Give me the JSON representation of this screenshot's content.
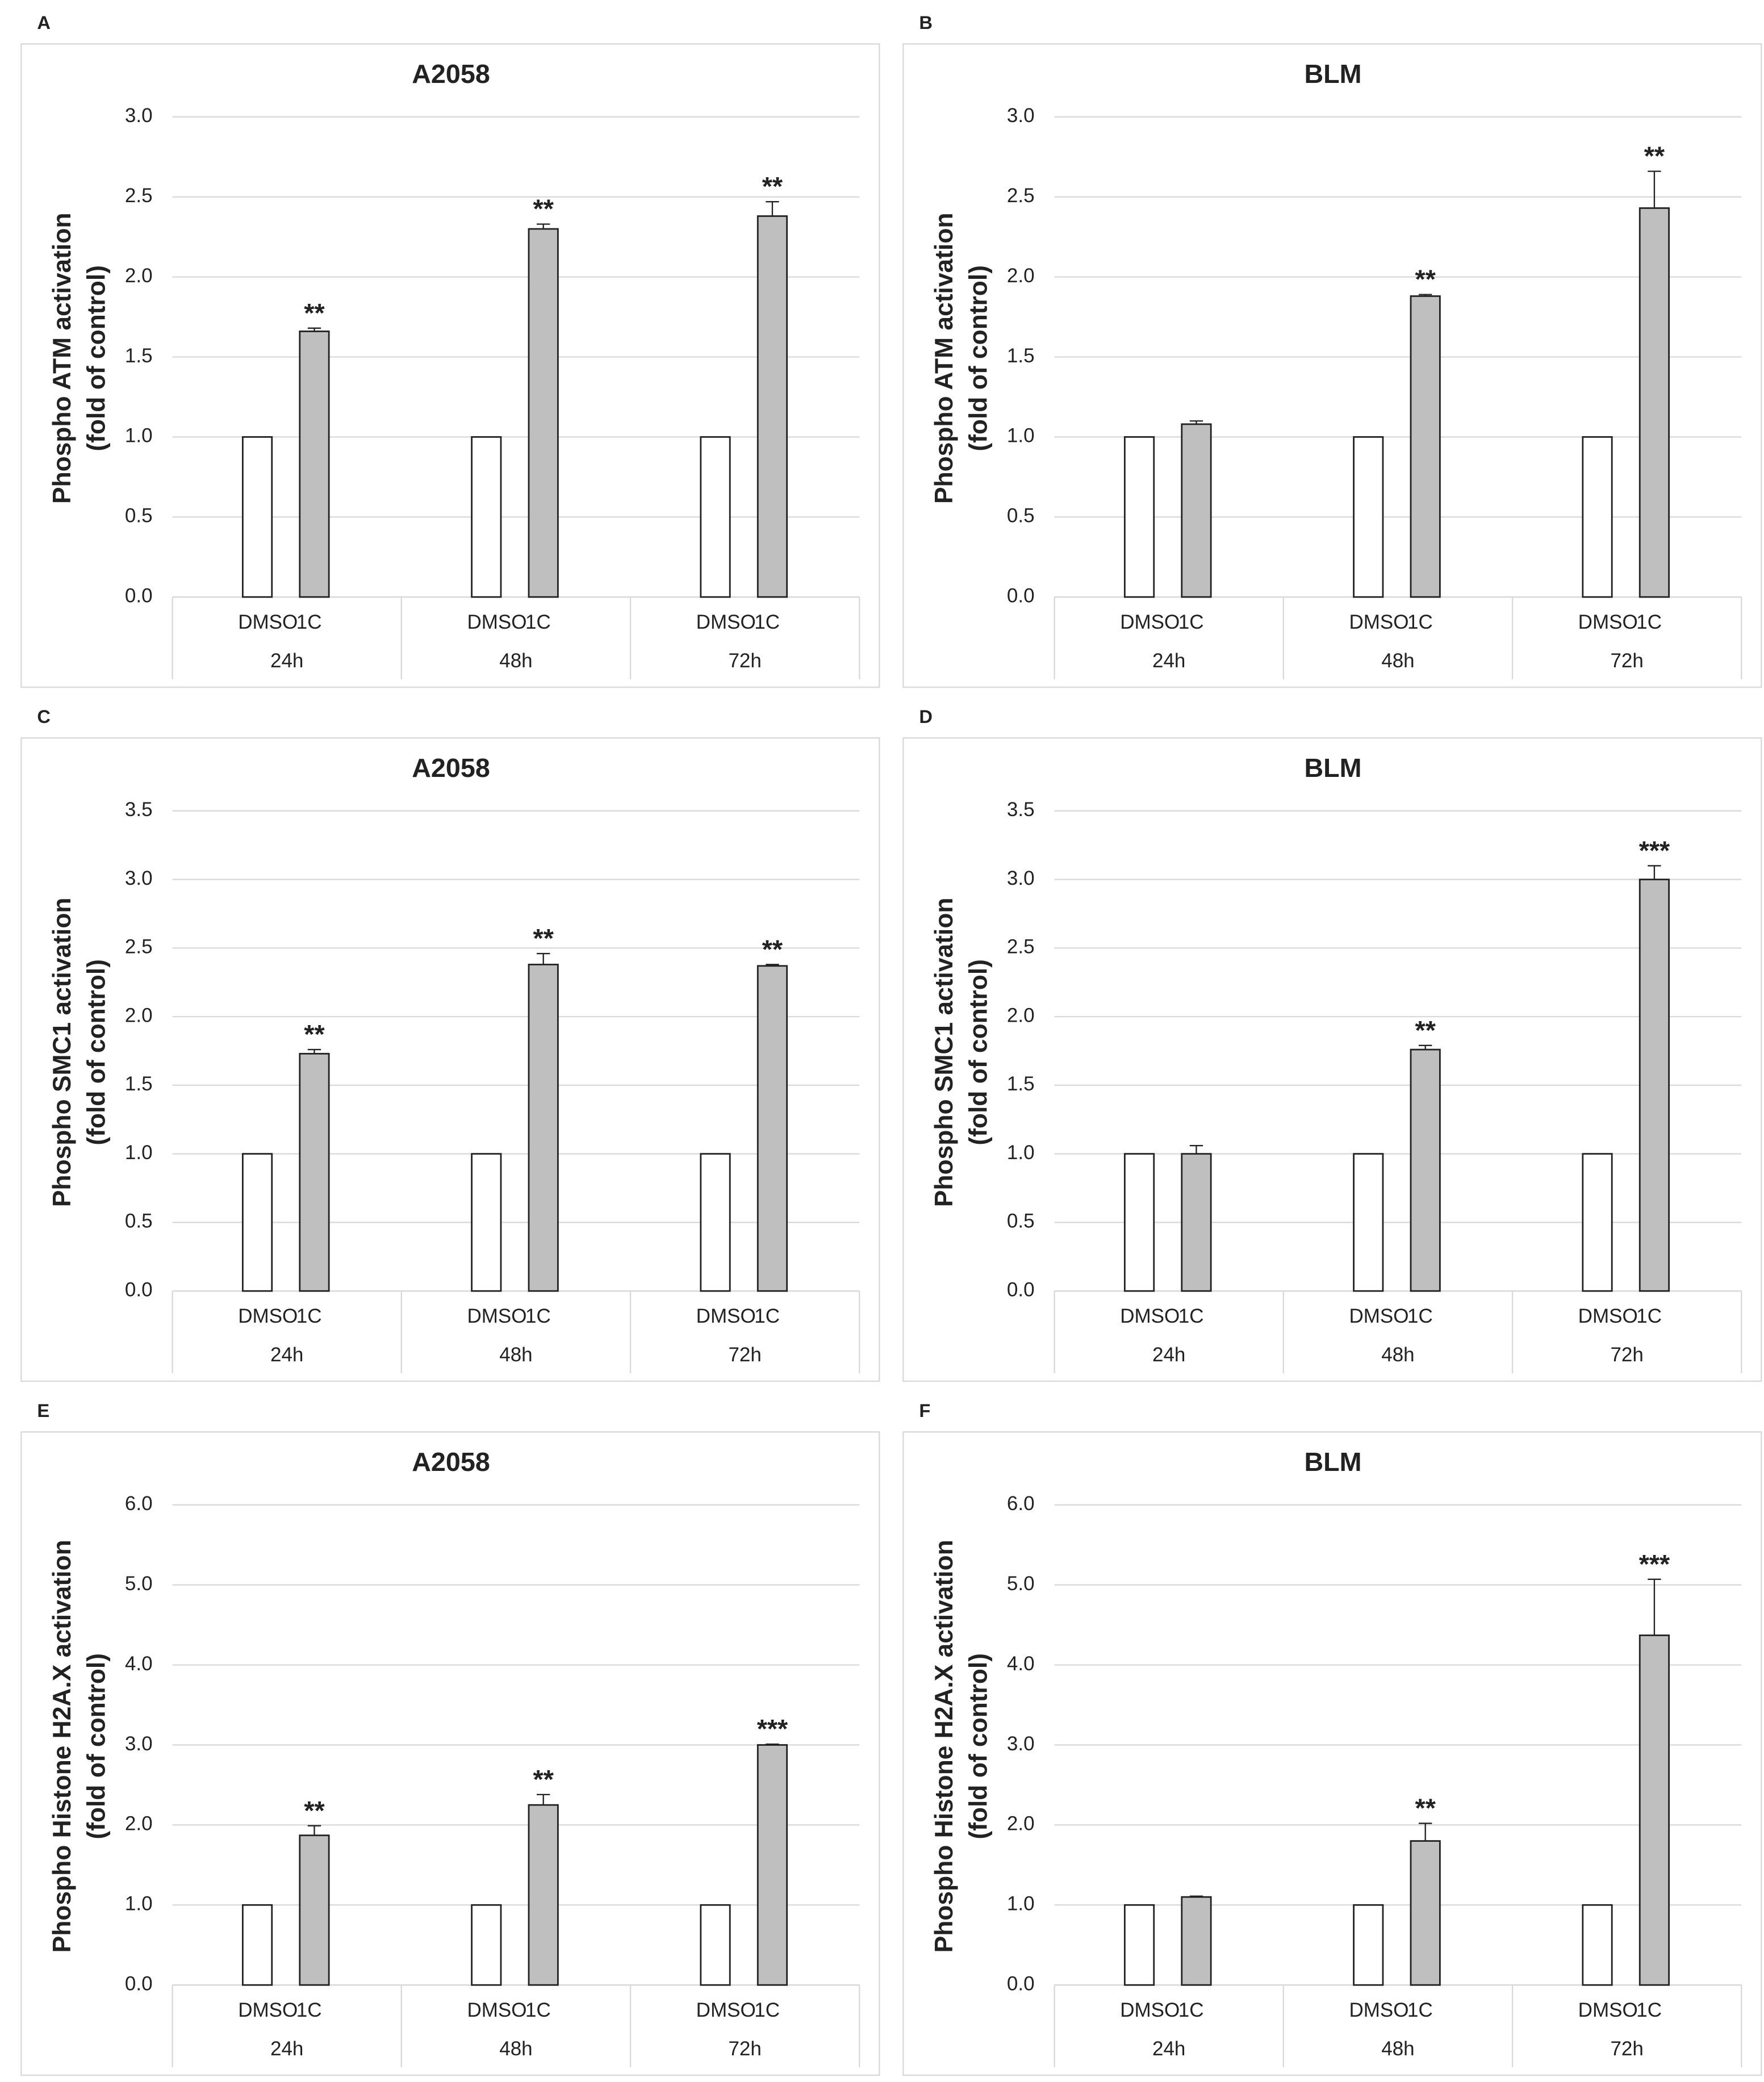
{
  "chart_data": [
    {
      "type": "bar",
      "panel_label": "A",
      "title": "A2058",
      "ylabel": [
        "Phospho ATM activation",
        "(fold of control)"
      ],
      "categories": [
        "24h",
        "48h",
        "72h"
      ],
      "series": [
        {
          "name": "DMSO",
          "color": "#ffffff",
          "values": [
            1.0,
            1.0,
            1.0
          ]
        },
        {
          "name": "1C",
          "color": "#bfbfbf",
          "values": [
            1.66,
            2.3,
            2.38
          ],
          "errors": [
            0.02,
            0.03,
            0.09
          ],
          "annotations": [
            "**",
            "**",
            "**"
          ]
        }
      ],
      "ylim": [
        0,
        3
      ],
      "yticks": [
        {
          "value": 0,
          "label": "0.0"
        },
        0.5,
        {
          "value": 1,
          "label": "1.0"
        },
        1.5,
        {
          "value": 2,
          "label": "2.0"
        },
        2.5,
        {
          "value": 3,
          "label": "3.0"
        }
      ],
      "grid": true
    },
    {
      "type": "bar",
      "panel_label": "B",
      "title": "BLM",
      "ylabel": [
        "Phospho ATM activation",
        "(fold of control)"
      ],
      "categories": [
        "24h",
        "48h",
        "72h"
      ],
      "series": [
        {
          "name": "DMSO",
          "color": "#ffffff",
          "values": [
            1.0,
            1.0,
            1.0
          ]
        },
        {
          "name": "1C",
          "color": "#bfbfbf",
          "values": [
            1.08,
            1.88,
            2.43
          ],
          "errors": [
            0.02,
            0.01,
            0.23
          ],
          "annotations": [
            null,
            "**",
            "**"
          ]
        }
      ],
      "ylim": [
        0,
        3
      ],
      "yticks": [
        {
          "value": 0,
          "label": "0.0"
        },
        0.5,
        {
          "value": 1,
          "label": "1.0"
        },
        1.5,
        {
          "value": 2,
          "label": "2.0"
        },
        2.5,
        {
          "value": 3,
          "label": "3.0"
        }
      ],
      "grid": true
    },
    {
      "type": "bar",
      "panel_label": "C",
      "title": "A2058",
      "ylabel": [
        "Phospho SMC1 activation",
        "(fold of control)"
      ],
      "categories": [
        "24h",
        "48h",
        "72h"
      ],
      "series": [
        {
          "name": "DMSO",
          "color": "#ffffff",
          "values": [
            1.0,
            1.0,
            1.0
          ]
        },
        {
          "name": "1C",
          "color": "#bfbfbf",
          "values": [
            1.73,
            2.38,
            2.37
          ],
          "errors": [
            0.03,
            0.08,
            0.01
          ],
          "annotations": [
            "**",
            "**",
            "**"
          ]
        }
      ],
      "ylim": [
        0,
        3.5
      ],
      "yticks": [
        {
          "value": 0,
          "label": "0.0"
        },
        0.5,
        {
          "value": 1,
          "label": "1.0"
        },
        1.5,
        {
          "value": 2,
          "label": "2.0"
        },
        2.5,
        {
          "value": 3,
          "label": "3.0"
        },
        3.5
      ],
      "grid": true
    },
    {
      "type": "bar",
      "panel_label": "D",
      "title": "BLM",
      "ylabel": [
        "Phospho SMC1 activation",
        "(fold of control)"
      ],
      "categories": [
        "24h",
        "48h",
        "72h"
      ],
      "series": [
        {
          "name": "DMSO",
          "color": "#ffffff",
          "values": [
            1.0,
            1.0,
            1.0
          ]
        },
        {
          "name": "1C",
          "color": "#bfbfbf",
          "values": [
            1.0,
            1.76,
            3.0
          ],
          "errors": [
            0.06,
            0.03,
            0.1
          ],
          "annotations": [
            null,
            "**",
            "***"
          ]
        }
      ],
      "ylim": [
        0,
        3.5
      ],
      "yticks": [
        {
          "value": 0,
          "label": "0.0"
        },
        0.5,
        {
          "value": 1,
          "label": "1.0"
        },
        1.5,
        {
          "value": 2,
          "label": "2.0"
        },
        2.5,
        {
          "value": 3,
          "label": "3.0"
        },
        3.5
      ],
      "grid": true
    },
    {
      "type": "bar",
      "panel_label": "E",
      "title": "A2058",
      "ylabel": [
        "Phospho Histone H2A.X activation",
        "(fold of control)"
      ],
      "categories": [
        "24h",
        "48h",
        "72h"
      ],
      "series": [
        {
          "name": "DMSO",
          "color": "#ffffff",
          "values": [
            1.0,
            1.0,
            1.0
          ]
        },
        {
          "name": "1C",
          "color": "#bfbfbf",
          "values": [
            1.87,
            2.25,
            3.0
          ],
          "errors": [
            0.12,
            0.13,
            0.01
          ],
          "annotations": [
            "**",
            "**",
            "***"
          ]
        }
      ],
      "ylim": [
        0,
        6
      ],
      "yticks": [
        {
          "value": 0,
          "label": "0.0"
        },
        {
          "value": 1,
          "label": "1.0"
        },
        {
          "value": 2,
          "label": "2.0"
        },
        {
          "value": 3,
          "label": "3.0"
        },
        {
          "value": 4,
          "label": "4.0"
        },
        {
          "value": 5,
          "label": "5.0"
        },
        {
          "value": 6,
          "label": "6.0"
        }
      ],
      "grid": true
    },
    {
      "type": "bar",
      "panel_label": "F",
      "title": "BLM",
      "ylabel": [
        "Phospho Histone H2A.X activation",
        "(fold of control)"
      ],
      "categories": [
        "24h",
        "48h",
        "72h"
      ],
      "series": [
        {
          "name": "DMSO",
          "color": "#ffffff",
          "values": [
            1.0,
            1.0,
            1.0
          ]
        },
        {
          "name": "1C",
          "color": "#bfbfbf",
          "values": [
            1.1,
            1.8,
            4.37
          ],
          "errors": [
            0.01,
            0.22,
            0.7
          ],
          "annotations": [
            null,
            "**",
            "***"
          ]
        }
      ],
      "ylim": [
        0,
        6
      ],
      "yticks": [
        {
          "value": 0,
          "label": "0.0"
        },
        {
          "value": 1,
          "label": "1.0"
        },
        {
          "value": 2,
          "label": "2.0"
        },
        {
          "value": 3,
          "label": "3.0"
        },
        {
          "value": 4,
          "label": "4.0"
        },
        {
          "value": 5,
          "label": "5.0"
        },
        {
          "value": 6,
          "label": "6.0"
        }
      ],
      "grid": true
    }
  ]
}
